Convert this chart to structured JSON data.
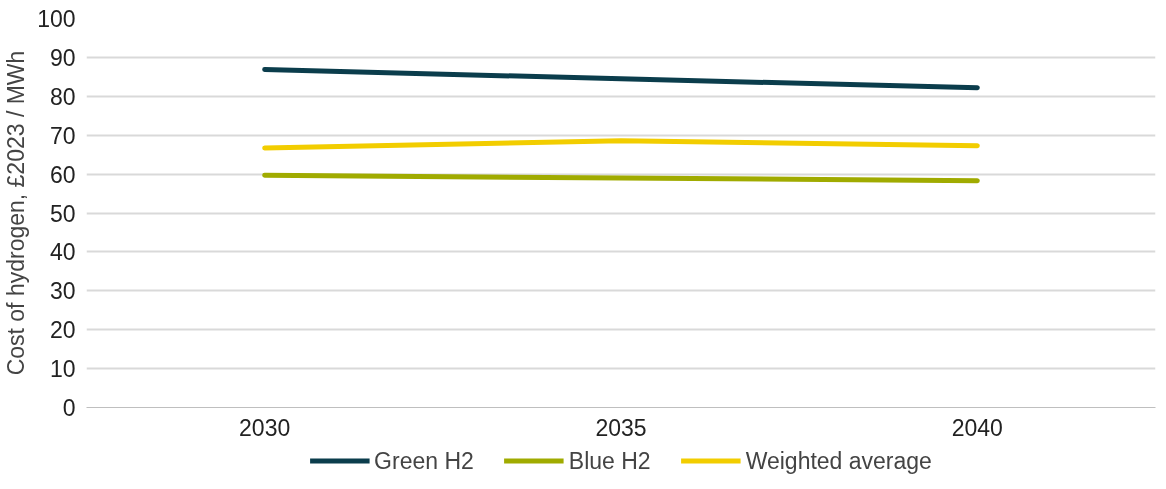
{
  "chart_data": {
    "type": "line",
    "ylabel": "Cost of hydrogen, £2023 / MWh",
    "categories": [
      "2030",
      "2035",
      "2040"
    ],
    "series": [
      {
        "name": "Green H2",
        "color": "#0b3d4c",
        "values": [
          86.9,
          84.5,
          82.2
        ]
      },
      {
        "name": "Blue H2",
        "color": "#a0ab00",
        "values": [
          59.7,
          59,
          58.3
        ]
      },
      {
        "name": "Weighted average",
        "color": "#f2cd00",
        "values": [
          66.7,
          68.6,
          67.3
        ]
      }
    ],
    "ylim": [
      0,
      100
    ],
    "yticks": [
      0,
      10,
      20,
      30,
      40,
      50,
      60,
      70,
      80,
      90,
      100
    ],
    "grid": "y",
    "legend": "bottom",
    "marker": "none",
    "line_style": "solid"
  }
}
